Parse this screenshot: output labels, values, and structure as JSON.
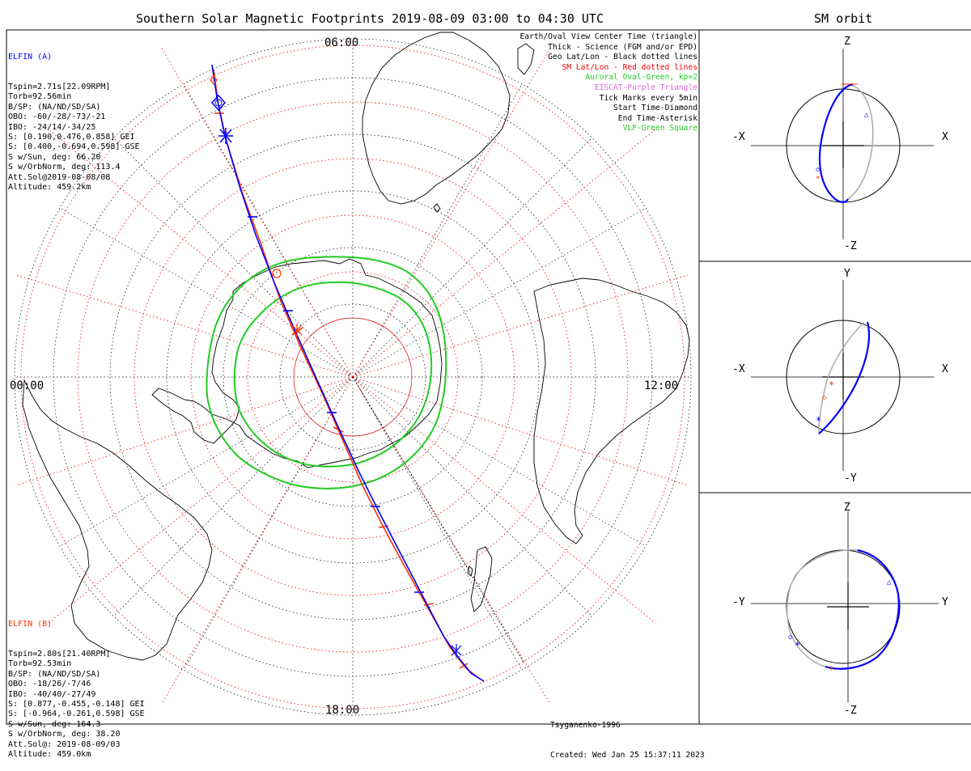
{
  "header": {
    "main_title": "Southern Solar Magnetic Footprints 2019-08-09 03:00 to 04:30 UTC",
    "side_title": "SM orbit"
  },
  "clock_labels": {
    "top": "06:00",
    "left": "00:00",
    "right": "12:00",
    "bottom": "18:00"
  },
  "elfin_a": {
    "name": "ELFIN (A)",
    "lines": [
      "Tspin=2.71s[22.09RPM]",
      "Torb=92.56min",
      "B/SP: (NA/ND/SD/SA)",
      "OBO: -60/-28/-73/-21",
      "IBO: -24/14/-34/25",
      "S: [0.190,0.476,0.858] GEI",
      "S: [0.400,-0.694,0.598] GSE",
      "S w/Sun, deg: 66.20",
      "S w/OrbNorm, deg: 113.4",
      "Att.Sol@2019-08-08/08",
      "Altitude: 459.2km"
    ],
    "color": "#0000ff"
  },
  "elfin_b": {
    "name": "ELFIN (B)",
    "lines": [
      "Tspin=2.80s[21.40RPM]",
      "Torb=92.53min",
      "B/SP: (NA/ND/SD/SA)",
      "OBO: -18/26/-7/46",
      "IBO: -40/40/-27/49",
      "S: [0.877,-0.455,-0.148] GEI",
      "S: [-0.964,-0.261,0.598] GSE",
      "S w/Sun, deg: 164.3",
      "S w/OrbNorm, deg: 38.20",
      "Att.Sol@: 2019-08-09/03",
      "Altitude: 459.0km"
    ],
    "color": "#ff3300"
  },
  "legend": [
    {
      "text": "Earth/Oval View Center Time (triangle)",
      "color": "#000000"
    },
    {
      "text": "Thick - Science (FGM and/or EPD)",
      "color": "#000000"
    },
    {
      "text": "Geo Lat/Lon - Black dotted lines",
      "color": "#000000"
    },
    {
      "text": "SM Lat/Lon - Red dotted lines",
      "color": "#ff0000"
    },
    {
      "text": "Auroral Oval-Green, kp=2",
      "color": "#22cc22"
    },
    {
      "text": "EISCAT-Purple Triangle",
      "color": "#dd66dd"
    },
    {
      "text": "Tick Marks every 5min",
      "color": "#000000"
    },
    {
      "text": "Start Time-Diamond",
      "color": "#000000"
    },
    {
      "text": "End Time-Asterisk",
      "color": "#000000"
    },
    {
      "text": "VLF-Green Square",
      "color": "#22cc22"
    }
  ],
  "footer": {
    "model": "Tsyganenko-1996",
    "created": "Created: Wed Jan 25 15:37:11 2023"
  },
  "orbit_panels": [
    {
      "top": "Z",
      "bottom": "-Z",
      "left": "-X",
      "right": "X"
    },
    {
      "top": "Y",
      "bottom": "-Y",
      "left": "-X",
      "right": "X"
    },
    {
      "top": "Z",
      "bottom": "-Z",
      "left": "-Y",
      "right": "Y"
    }
  ],
  "colors": {
    "trace_a": "#0000ff",
    "trace_b": "#ff3300",
    "oval": "#22cc22",
    "sm_grid": "#ee0000",
    "geo_grid": "#000000",
    "orbit_gray": "#aaaaaa"
  }
}
